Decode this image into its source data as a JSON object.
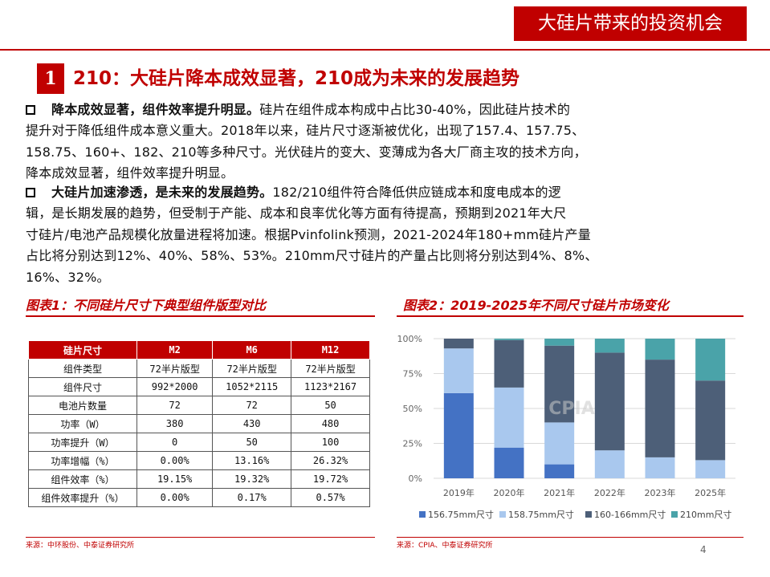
{
  "header": {
    "title": "大硅片带来的投资机会"
  },
  "section": {
    "number": "1",
    "title": "210：大硅片降本成效显著，210成为未来的发展趋势"
  },
  "paragraph1": {
    "bold": "降本成效显著，组件效率提升明显。",
    "line1": "硅片在组件成本构成中占比30-40%，因此硅片技术的",
    "line2": "提升对于降低组件成本意义重大。2018年以来，硅片尺寸逐渐被优化，出现了157.4、157.75、",
    "line3": "158.75、160+、182、210等多种尺寸。光伏硅片的变大、变薄成为各大厂商主攻的技术方向，",
    "line4": "降本成效显著，组件效率提升明显。"
  },
  "paragraph2": {
    "bold": "大硅片加速渗透，是未来的发展趋势。",
    "line1": "182/210组件符合降低供应链成本和度电成本的逻",
    "line2": "辑，是长期发展的趋势，但受制于产能、成本和良率优化等方面有待提高，预期到2021年大尺",
    "line3": "寸硅片/电池产品规模化放量进程将加速。根据Pvinfolink预测，2021-2024年180+mm硅片产量",
    "line4": "占比将分别达到12%、40%、58%、53%。210mm尺寸硅片的产量占比则将分别达到4%、8%、",
    "line5": "16%、32%。"
  },
  "figure1": {
    "title": "图表1：不同硅片尺寸下典型组件版型对比",
    "source": "来源：中环股份、中泰证券研究所",
    "table": {
      "headers": [
        "硅片尺寸",
        "M2",
        "M6",
        "M12"
      ],
      "rows": [
        [
          "组件类型",
          "72半片版型",
          "72半片版型",
          "72半片版型"
        ],
        [
          "组件尺寸",
          "992*2000",
          "1052*2115",
          "1123*2167"
        ],
        [
          "电池片数量",
          "72",
          "72",
          "50"
        ],
        [
          "功率（W）",
          "380",
          "430",
          "480"
        ],
        [
          "功率提升（W）",
          "0",
          "50",
          "100"
        ],
        [
          "功率增幅（%）",
          "0.00%",
          "13.16%",
          "26.32%"
        ],
        [
          "组件效率（%）",
          "19.15%",
          "19.32%",
          "19.72%"
        ],
        [
          "组件效率提升（%）",
          "0.00%",
          "0.17%",
          "0.57%"
        ]
      ]
    }
  },
  "figure2": {
    "title": "图表2：2019-2025年不同尺寸硅片市场变化",
    "source": "来源：CPIA、中泰证券研究所",
    "watermark": "CPIA"
  },
  "chart_data": {
    "type": "bar",
    "stacked": true,
    "categories": [
      "2019年",
      "2020年",
      "2021年",
      "2022年",
      "2023年",
      "2025年"
    ],
    "series": [
      {
        "name": "156.75mm尺寸",
        "color": "#4472c4",
        "values": [
          61,
          22,
          10,
          0,
          0,
          0
        ]
      },
      {
        "name": "158.75mm尺寸",
        "color": "#a9c8ee",
        "values": [
          32,
          43,
          30,
          20,
          15,
          13
        ]
      },
      {
        "name": "160-166mm尺寸",
        "color": "#4d5f78",
        "values": [
          7,
          34,
          55,
          70,
          70,
          57
        ]
      },
      {
        "name": "210mm尺寸",
        "color": "#4aa3a9",
        "values": [
          0,
          1,
          5,
          10,
          15,
          30
        ]
      }
    ],
    "ylim": [
      0,
      100
    ],
    "yticks": [
      "0%",
      "25%",
      "50%",
      "75%",
      "100%"
    ],
    "grid": true,
    "legend": "bottom"
  },
  "page_number": "4",
  "colors": {
    "accent": "#c00000"
  }
}
